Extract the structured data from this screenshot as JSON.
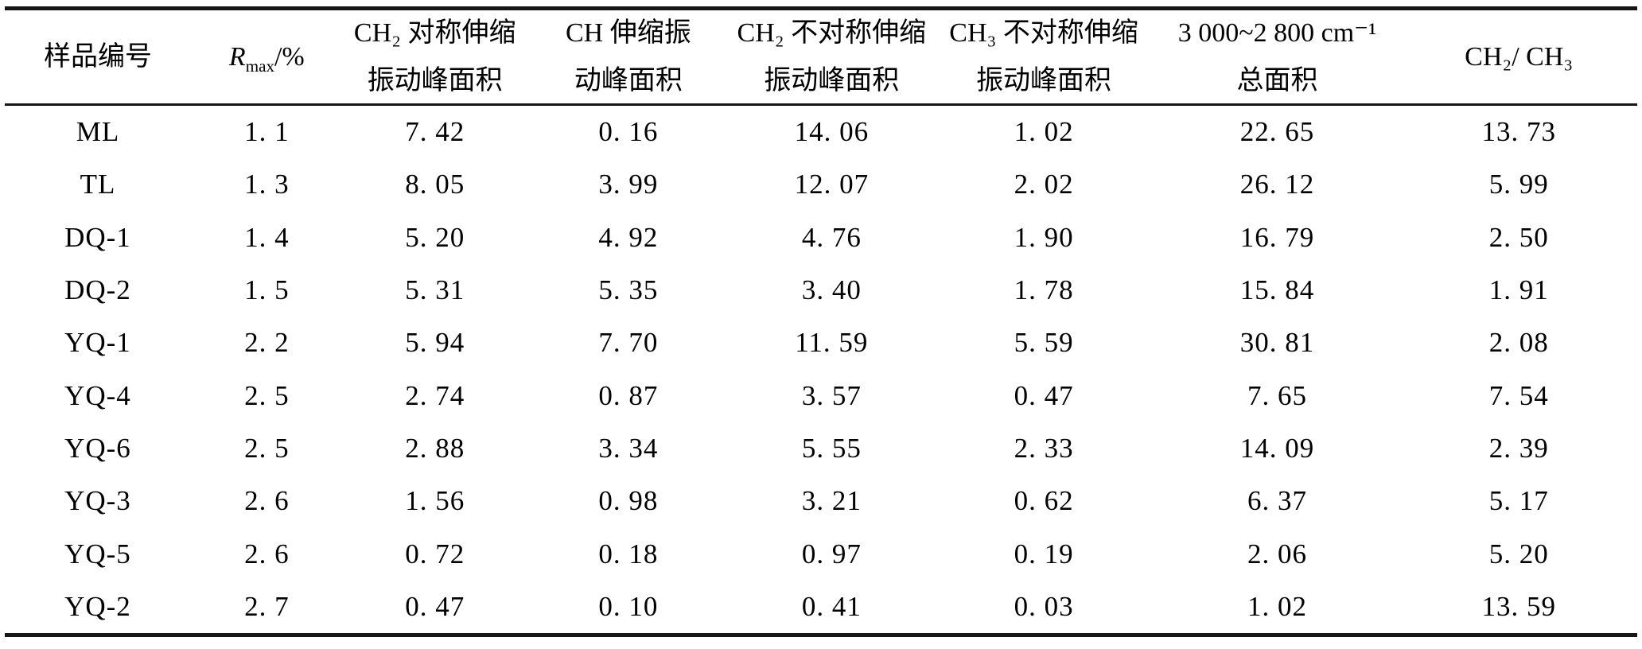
{
  "table": {
    "columns": [
      {
        "id": "sample-id",
        "line1": "样品编号",
        "line2": ""
      },
      {
        "id": "rmax",
        "symbol": "R",
        "subscript": "max",
        "suffix": "/%"
      },
      {
        "id": "ch2-symmetric",
        "line1": "CH₂ 对称伸缩",
        "line2": "振动峰面积"
      },
      {
        "id": "ch-stretch",
        "line1": "CH 伸缩振",
        "line2": "动峰面积"
      },
      {
        "id": "ch2-asymmetric",
        "line1": "CH₂ 不对称伸缩",
        "line2": "振动峰面积"
      },
      {
        "id": "ch3-asymmetric",
        "line1": "CH₃ 不对称伸缩",
        "line2": "振动峰面积"
      },
      {
        "id": "total-area",
        "line1": "3 000~2 800 cm⁻¹",
        "line2": "总面积"
      },
      {
        "id": "ch2-ch3-ratio",
        "line1": "CH₂/ CH₃",
        "line2": ""
      }
    ],
    "rows": [
      [
        "ML",
        "1. 1",
        "7. 42",
        "0. 16",
        "14. 06",
        "1. 02",
        "22. 65",
        "13. 73"
      ],
      [
        "TL",
        "1. 3",
        "8. 05",
        "3. 99",
        "12. 07",
        "2. 02",
        "26. 12",
        "5. 99"
      ],
      [
        "DQ-1",
        "1. 4",
        "5. 20",
        "4. 92",
        "4. 76",
        "1. 90",
        "16. 79",
        "2. 50"
      ],
      [
        "DQ-2",
        "1. 5",
        "5. 31",
        "5. 35",
        "3. 40",
        "1. 78",
        "15. 84",
        "1. 91"
      ],
      [
        "YQ-1",
        "2. 2",
        "5. 94",
        "7. 70",
        "11. 59",
        "5. 59",
        "30. 81",
        "2. 08"
      ],
      [
        "YQ-4",
        "2. 5",
        "2. 74",
        "0. 87",
        "3. 57",
        "0. 47",
        "7. 65",
        "7. 54"
      ],
      [
        "YQ-6",
        "2. 5",
        "2. 88",
        "3. 34",
        "5. 55",
        "2. 33",
        "14. 09",
        "2. 39"
      ],
      [
        "YQ-3",
        "2. 6",
        "1. 56",
        "0. 98",
        "3. 21",
        "0. 62",
        "6. 37",
        "5. 17"
      ],
      [
        "YQ-5",
        "2. 6",
        "0. 72",
        "0. 18",
        "0. 97",
        "0. 19",
        "2. 06",
        "5. 20"
      ],
      [
        "YQ-2",
        "2. 7",
        "0. 47",
        "0. 10",
        "0. 41",
        "0. 03",
        "1. 02",
        "13. 59"
      ]
    ],
    "colors": {
      "text": "#000000",
      "rule": "#161616",
      "background": "#ffffff"
    }
  }
}
